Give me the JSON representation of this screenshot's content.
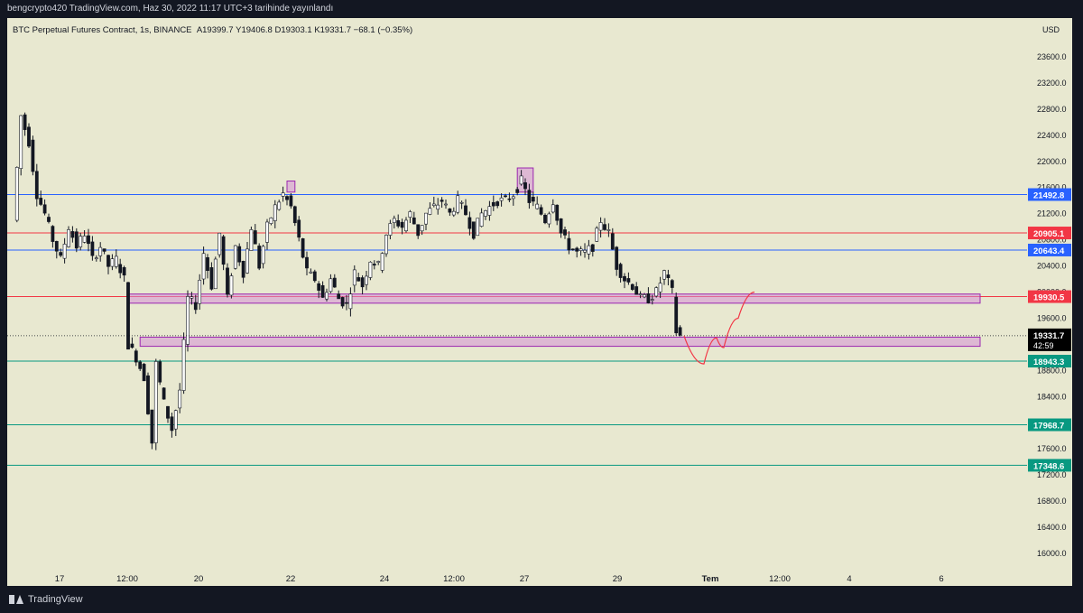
{
  "header": {
    "publish_text": "bengcrypto420 TradingView.com, Haz 30, 2022 11:17 UTC+3 tarihinde yayınlandı"
  },
  "legend": {
    "symbol": "BTC Perpetual Futures Contract, 1s, BINANCE",
    "open": "A19399.7",
    "high": "Y19406.8",
    "low": "D19303.1",
    "close": "K19331.7",
    "change": "−68.1 (−0.35%)"
  },
  "currency": "USD",
  "footer": {
    "brand": "TradingView"
  },
  "colors": {
    "background": "#e8e8d0",
    "up": "#ffffff",
    "down": "#131722",
    "blue_line": "#2962ff",
    "red_line": "#f23645",
    "green_line": "#089981",
    "zone": "#d48fd6"
  },
  "chart_data": {
    "type": "candlestick",
    "y_axis": {
      "min": 16000,
      "max": 23600,
      "ticks": [
        23600,
        23200,
        22800,
        22400,
        22000,
        21600,
        21200,
        20800,
        20400,
        20000,
        19600,
        19200,
        18800,
        18400,
        18000,
        17600,
        17200,
        16800,
        16400,
        16000
      ],
      "tick_labels": [
        "23600.0",
        "23200.0",
        "22800.0",
        "22400.0",
        "22000.0",
        "21600.0",
        "21200.0",
        "20800.0",
        "20400.0",
        "20000.0",
        "19600.0",
        "19200.0",
        "18800.0",
        "18400.0",
        "18000.0",
        "17600.0",
        "17200.0",
        "16800.0",
        "16400.0",
        "16000.0"
      ]
    },
    "x_axis": {
      "labels": [
        "17",
        "12:00",
        "20",
        "22",
        "24",
        "12:00",
        "27",
        "29",
        "Tem",
        "12:00",
        "4",
        "6"
      ]
    },
    "horizontal_levels": [
      {
        "price": 21492.8,
        "label": "21492.8",
        "color": "blue"
      },
      {
        "price": 20905.1,
        "label": "20905.1",
        "color": "red"
      },
      {
        "price": 20643.4,
        "label": "20643.4",
        "color": "blue"
      },
      {
        "price": 19930.5,
        "label": "19930.5",
        "color": "red"
      },
      {
        "price": 18943.3,
        "label": "18943.3",
        "color": "green"
      },
      {
        "price": 17968.7,
        "label": "17968.7",
        "color": "green"
      },
      {
        "price": 17348.6,
        "label": "17348.6",
        "color": "green"
      }
    ],
    "last_price": {
      "price": 19331.7,
      "label": "19331.7",
      "countdown": "42:59"
    },
    "zones": [
      {
        "top": 19970,
        "bottom": 19830,
        "from_index": 30,
        "to_index": "extend"
      },
      {
        "top": 19310,
        "bottom": 19170,
        "from_index": 33,
        "to_index": "extend"
      },
      {
        "top": 21700,
        "bottom": 21530,
        "from_index": 70,
        "to_index": 72
      },
      {
        "top": 21900,
        "bottom": 21530,
        "from_index": 128,
        "to_index": 132
      }
    ],
    "path_points": [
      {
        "i": 2,
        "p": 21100
      },
      {
        "i": 4,
        "p": 22700
      },
      {
        "i": 6,
        "p": 22300
      },
      {
        "i": 8,
        "p": 21500
      },
      {
        "i": 10,
        "p": 21200
      },
      {
        "i": 12,
        "p": 20800
      },
      {
        "i": 14,
        "p": 20500
      },
      {
        "i": 16,
        "p": 21000
      },
      {
        "i": 18,
        "p": 20700
      },
      {
        "i": 20,
        "p": 20900
      },
      {
        "i": 22,
        "p": 20500
      },
      {
        "i": 24,
        "p": 20700
      },
      {
        "i": 26,
        "p": 20400
      },
      {
        "i": 28,
        "p": 20500
      },
      {
        "i": 30,
        "p": 20200
      },
      {
        "i": 31,
        "p": 19200
      },
      {
        "i": 33,
        "p": 19000
      },
      {
        "i": 35,
        "p": 18700
      },
      {
        "i": 37,
        "p": 17700
      },
      {
        "i": 38,
        "p": 18900
      },
      {
        "i": 40,
        "p": 18300
      },
      {
        "i": 42,
        "p": 17900
      },
      {
        "i": 44,
        "p": 18500
      },
      {
        "i": 46,
        "p": 19900
      },
      {
        "i": 48,
        "p": 19800
      },
      {
        "i": 50,
        "p": 20600
      },
      {
        "i": 52,
        "p": 20100
      },
      {
        "i": 54,
        "p": 20900
      },
      {
        "i": 56,
        "p": 19900
      },
      {
        "i": 58,
        "p": 20700
      },
      {
        "i": 60,
        "p": 20300
      },
      {
        "i": 62,
        "p": 21000
      },
      {
        "i": 64,
        "p": 20400
      },
      {
        "i": 66,
        "p": 21000
      },
      {
        "i": 68,
        "p": 21300
      },
      {
        "i": 70,
        "p": 21500
      },
      {
        "i": 72,
        "p": 21300
      },
      {
        "i": 74,
        "p": 20800
      },
      {
        "i": 76,
        "p": 20300
      },
      {
        "i": 78,
        "p": 20200
      },
      {
        "i": 80,
        "p": 19900
      },
      {
        "i": 82,
        "p": 20200
      },
      {
        "i": 84,
        "p": 19900
      },
      {
        "i": 86,
        "p": 19800
      },
      {
        "i": 88,
        "p": 20300
      },
      {
        "i": 90,
        "p": 20100
      },
      {
        "i": 92,
        "p": 20500
      },
      {
        "i": 94,
        "p": 20400
      },
      {
        "i": 96,
        "p": 20900
      },
      {
        "i": 98,
        "p": 21100
      },
      {
        "i": 100,
        "p": 21000
      },
      {
        "i": 102,
        "p": 21200
      },
      {
        "i": 104,
        "p": 20900
      },
      {
        "i": 106,
        "p": 21200
      },
      {
        "i": 108,
        "p": 21300
      },
      {
        "i": 110,
        "p": 21400
      },
      {
        "i": 112,
        "p": 21200
      },
      {
        "i": 114,
        "p": 21400
      },
      {
        "i": 116,
        "p": 21200
      },
      {
        "i": 118,
        "p": 20900
      },
      {
        "i": 120,
        "p": 21200
      },
      {
        "i": 122,
        "p": 21300
      },
      {
        "i": 124,
        "p": 21400
      },
      {
        "i": 126,
        "p": 21400
      },
      {
        "i": 128,
        "p": 21500
      },
      {
        "i": 130,
        "p": 21700
      },
      {
        "i": 132,
        "p": 21400
      },
      {
        "i": 134,
        "p": 21300
      },
      {
        "i": 136,
        "p": 21100
      },
      {
        "i": 138,
        "p": 21400
      },
      {
        "i": 140,
        "p": 20900
      },
      {
        "i": 142,
        "p": 20700
      },
      {
        "i": 144,
        "p": 20600
      },
      {
        "i": 146,
        "p": 20600
      },
      {
        "i": 148,
        "p": 20700
      },
      {
        "i": 150,
        "p": 21100
      },
      {
        "i": 152,
        "p": 20900
      },
      {
        "i": 154,
        "p": 20400
      },
      {
        "i": 156,
        "p": 20200
      },
      {
        "i": 158,
        "p": 20100
      },
      {
        "i": 160,
        "p": 19900
      },
      {
        "i": 162,
        "p": 19900
      },
      {
        "i": 164,
        "p": 20000
      },
      {
        "i": 166,
        "p": 20300
      },
      {
        "i": 168,
        "p": 20000
      },
      {
        "i": 169,
        "p": 19400
      },
      {
        "i": 170,
        "p": 19330
      }
    ],
    "projection": [
      19330,
      18900,
      19300,
      19150,
      19600,
      20000
    ]
  }
}
